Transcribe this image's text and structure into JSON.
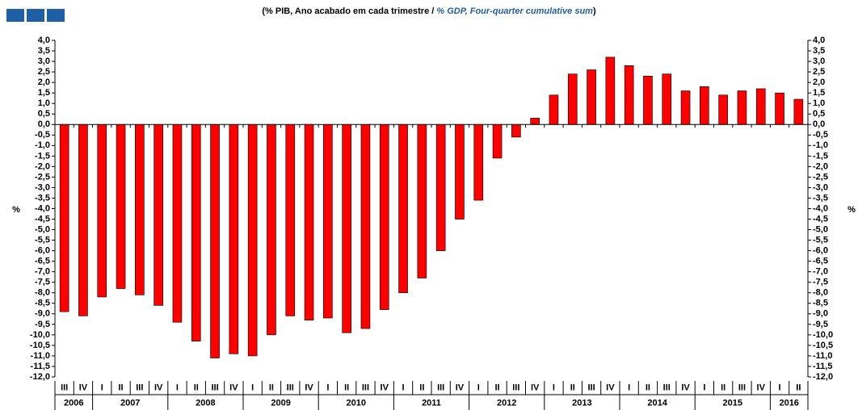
{
  "chart_data": {
    "type": "bar",
    "title": [
      "(% PIB, Ano acabado em cada trimestre / ",
      "% GDP, Four-quarter cumulative sum",
      ")"
    ],
    "ylabel": "%",
    "categories": [
      "III",
      "IV",
      "I",
      "II",
      "III",
      "IV",
      "I",
      "II",
      "III",
      "IV",
      "I",
      "II",
      "III",
      "IV",
      "I",
      "II",
      "III",
      "IV",
      "I",
      "II",
      "III",
      "IV",
      "I",
      "II",
      "III",
      "IV",
      "I",
      "II",
      "III",
      "IV",
      "I",
      "II",
      "III",
      "IV",
      "I",
      "II",
      "III",
      "IV",
      "I",
      "II"
    ],
    "years": [
      "2006",
      "2007",
      "2008",
      "2009",
      "2010",
      "2011",
      "2012",
      "2013",
      "2014",
      "2015",
      "2016"
    ],
    "values": [
      -8.9,
      -9.1,
      -8.2,
      -7.8,
      -8.1,
      -8.6,
      -9.4,
      -10.3,
      -11.1,
      -10.9,
      -11.0,
      -10.0,
      -9.1,
      -9.3,
      -9.2,
      -9.9,
      -9.7,
      -8.8,
      -8.0,
      -7.3,
      -6.0,
      -4.5,
      -3.6,
      -1.6,
      -0.6,
      0.3,
      1.4,
      2.4,
      2.6,
      3.2,
      2.8,
      2.3,
      2.4,
      1.6,
      1.8,
      1.4,
      1.6,
      1.7,
      1.5,
      1.2
    ],
    "color": "#ff0000",
    "ylim": [
      -12,
      4
    ],
    "yticks": [
      {
        "value": 4,
        "label": "4,0"
      },
      {
        "value": 3.5,
        "label": "3,5"
      },
      {
        "value": 3,
        "label": "3,0"
      },
      {
        "value": 2.5,
        "label": "2,5"
      },
      {
        "value": 2,
        "label": "2,0"
      },
      {
        "value": 1.5,
        "label": "1,5"
      },
      {
        "value": 1,
        "label": "1,0"
      },
      {
        "value": 0.5,
        "label": "0,5"
      },
      {
        "value": 0,
        "label": "0,0"
      },
      {
        "value": -0.5,
        "label": "-0,5"
      },
      {
        "value": -1,
        "label": "-1,0"
      },
      {
        "value": -1.5,
        "label": "-1,5"
      },
      {
        "value": -2,
        "label": "-2,0"
      },
      {
        "value": -2.5,
        "label": "-2,5"
      },
      {
        "value": -3,
        "label": "-3,0"
      },
      {
        "value": -3.5,
        "label": "-3,5"
      },
      {
        "value": -4,
        "label": "-4,0"
      },
      {
        "value": -4.5,
        "label": "-4,5"
      },
      {
        "value": -5,
        "label": "-5,0"
      },
      {
        "value": -5.5,
        "label": "-5,5"
      },
      {
        "value": -6,
        "label": "-6,0"
      },
      {
        "value": -6.5,
        "label": "-6,5"
      },
      {
        "value": -7,
        "label": "-7,0"
      },
      {
        "value": -7.5,
        "label": "-7,5"
      },
      {
        "value": -8,
        "label": "-8,0"
      },
      {
        "value": -8.5,
        "label": "-8,5"
      },
      {
        "value": -9,
        "label": "-9,0"
      },
      {
        "value": -9.5,
        "label": "-9,5"
      },
      {
        "value": -10,
        "label": "-10,0"
      },
      {
        "value": -10.5,
        "label": "-10,5"
      },
      {
        "value": -11,
        "label": "-11,0"
      },
      {
        "value": -11.5,
        "label": "-11,5"
      },
      {
        "value": -12,
        "label": "-12,0"
      }
    ],
    "grid": false
  }
}
